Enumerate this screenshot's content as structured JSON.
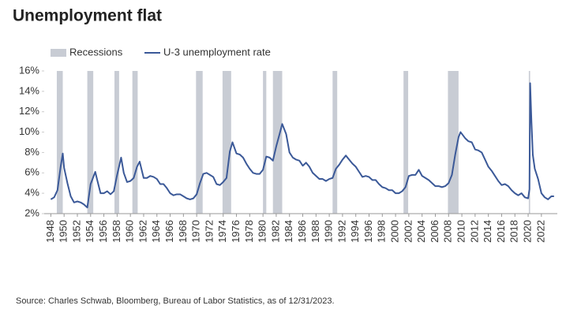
{
  "chart_data": {
    "type": "line",
    "title": "Unemployment flat",
    "source": "Source: Charles Schwab, Bloomberg, Bureau of Labor Statistics, as of 12/31/2023.",
    "x": [
      1948.0,
      1948.5,
      1949.0,
      1949.5,
      1949.8,
      1950.0,
      1950.5,
      1951.0,
      1951.5,
      1952.0,
      1952.5,
      1953.0,
      1953.5,
      1954.0,
      1954.7,
      1955.0,
      1955.5,
      1956.0,
      1956.5,
      1957.0,
      1957.5,
      1958.0,
      1958.6,
      1959.0,
      1959.5,
      1960.0,
      1960.5,
      1961.0,
      1961.4,
      1962.0,
      1962.5,
      1963.0,
      1963.5,
      1964.0,
      1964.5,
      1965.0,
      1965.5,
      1966.0,
      1966.5,
      1967.0,
      1967.5,
      1968.0,
      1968.5,
      1969.0,
      1969.5,
      1970.0,
      1970.5,
      1971.0,
      1971.5,
      1972.0,
      1972.5,
      1973.0,
      1973.5,
      1974.0,
      1974.5,
      1975.0,
      1975.4,
      1976.0,
      1976.5,
      1977.0,
      1977.5,
      1978.0,
      1978.5,
      1979.0,
      1979.5,
      1980.0,
      1980.5,
      1981.0,
      1981.5,
      1982.0,
      1982.5,
      1982.9,
      1983.5,
      1984.0,
      1984.5,
      1985.0,
      1985.5,
      1986.0,
      1986.5,
      1987.0,
      1987.5,
      1988.0,
      1988.5,
      1989.0,
      1989.5,
      1990.0,
      1990.5,
      1991.0,
      1991.5,
      1992.0,
      1992.5,
      1993.0,
      1993.5,
      1994.0,
      1994.5,
      1995.0,
      1995.5,
      1996.0,
      1996.5,
      1997.0,
      1997.5,
      1998.0,
      1998.5,
      1999.0,
      1999.5,
      2000.0,
      2000.5,
      2001.0,
      2001.5,
      2002.0,
      2002.5,
      2003.0,
      2003.5,
      2004.0,
      2004.5,
      2005.0,
      2005.5,
      2006.0,
      2006.5,
      2007.0,
      2007.5,
      2008.0,
      2008.5,
      2009.0,
      2009.5,
      2009.8,
      2010.5,
      2011.0,
      2011.5,
      2012.0,
      2012.5,
      2013.0,
      2013.5,
      2014.0,
      2014.5,
      2015.0,
      2015.5,
      2016.0,
      2016.5,
      2017.0,
      2017.5,
      2018.0,
      2018.5,
      2019.0,
      2019.5,
      2020.0,
      2020.2,
      2020.3,
      2020.5,
      2020.7,
      2021.0,
      2021.5,
      2022.0,
      2022.5,
      2023.0,
      2023.5,
      2023.9
    ],
    "series": [
      {
        "name": "U-3 unemployment rate",
        "color": "#3b5998",
        "values": [
          3.4,
          3.6,
          4.3,
          6.7,
          7.9,
          6.5,
          5.0,
          3.7,
          3.1,
          3.2,
          3.1,
          2.9,
          2.6,
          4.9,
          6.1,
          5.3,
          4.0,
          4.0,
          4.2,
          3.9,
          4.2,
          5.8,
          7.5,
          6.0,
          5.1,
          5.2,
          5.5,
          6.6,
          7.1,
          5.5,
          5.5,
          5.7,
          5.6,
          5.4,
          4.9,
          4.9,
          4.5,
          4.0,
          3.8,
          3.9,
          3.9,
          3.7,
          3.5,
          3.4,
          3.5,
          3.9,
          5.0,
          5.9,
          6.0,
          5.8,
          5.6,
          4.9,
          4.8,
          5.1,
          5.5,
          8.1,
          9.0,
          7.9,
          7.8,
          7.5,
          6.9,
          6.4,
          6.0,
          5.9,
          5.9,
          6.3,
          7.6,
          7.5,
          7.2,
          8.6,
          9.8,
          10.8,
          9.8,
          8.0,
          7.5,
          7.3,
          7.2,
          6.7,
          7.0,
          6.6,
          6.0,
          5.7,
          5.4,
          5.4,
          5.2,
          5.4,
          5.5,
          6.4,
          6.8,
          7.3,
          7.7,
          7.3,
          6.9,
          6.6,
          6.1,
          5.6,
          5.7,
          5.6,
          5.3,
          5.3,
          4.9,
          4.6,
          4.5,
          4.3,
          4.3,
          4.0,
          4.0,
          4.2,
          4.6,
          5.7,
          5.8,
          5.8,
          6.3,
          5.7,
          5.5,
          5.3,
          5.0,
          4.7,
          4.7,
          4.6,
          4.7,
          5.0,
          5.8,
          7.8,
          9.5,
          10.0,
          9.4,
          9.1,
          9.0,
          8.3,
          8.2,
          8.0,
          7.3,
          6.6,
          6.2,
          5.7,
          5.2,
          4.8,
          4.9,
          4.7,
          4.3,
          4.0,
          3.8,
          4.0,
          3.6,
          3.5,
          4.4,
          14.8,
          11.0,
          7.8,
          6.4,
          5.4,
          4.0,
          3.6,
          3.4,
          3.7,
          3.7
        ]
      }
    ],
    "recessions": {
      "name": "Recessions",
      "color": "#c8ccd4",
      "periods": [
        [
          1948.9,
          1949.8
        ],
        [
          1953.5,
          1954.4
        ],
        [
          1957.6,
          1958.3
        ],
        [
          1960.3,
          1961.1
        ],
        [
          1969.9,
          1970.9
        ],
        [
          1973.9,
          1975.2
        ],
        [
          1980.0,
          1980.5
        ],
        [
          1981.5,
          1982.9
        ],
        [
          1990.5,
          1991.2
        ],
        [
          2001.2,
          2001.9
        ],
        [
          2007.9,
          2009.5
        ],
        [
          2020.1,
          2020.3
        ]
      ]
    },
    "xlim": [
      1947,
      2024.4
    ],
    "xticks": [
      1948,
      1950,
      1952,
      1954,
      1956,
      1958,
      1960,
      1962,
      1964,
      1966,
      1968,
      1970,
      1972,
      1974,
      1976,
      1978,
      1980,
      1982,
      1984,
      1986,
      1988,
      1990,
      1992,
      1994,
      1996,
      1998,
      2000,
      2002,
      2004,
      2006,
      2008,
      2010,
      2012,
      2014,
      2016,
      2018,
      2020,
      2022
    ],
    "ylim": [
      2,
      16
    ],
    "yticks": [
      {
        "value": 2,
        "label": "2%"
      },
      {
        "value": 4,
        "label": "4%"
      },
      {
        "value": 6,
        "label": "6%"
      },
      {
        "value": 8,
        "label": "8%"
      },
      {
        "value": 10,
        "label": "10%"
      },
      {
        "value": 12,
        "label": "12%"
      },
      {
        "value": 14,
        "label": "14%"
      },
      {
        "value": 16,
        "label": "16%"
      }
    ],
    "grid": false
  }
}
